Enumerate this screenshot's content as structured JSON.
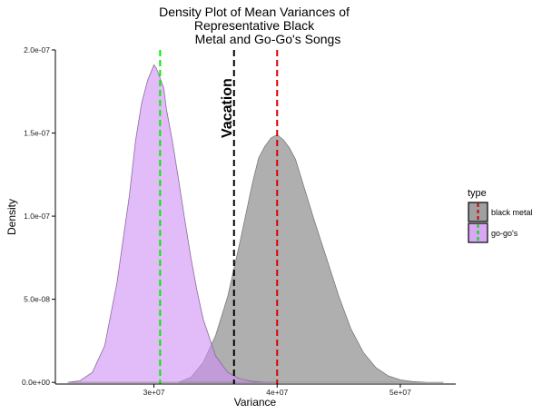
{
  "chart_data": {
    "type": "area",
    "title_lines": [
      "Density Plot of Mean Variances of",
      "Representative Black",
      "Metal and Go-Go's Songs"
    ],
    "xlabel": "Variance",
    "ylabel": "Density",
    "xlim": [
      22000000,
      54500000
    ],
    "ylim": [
      -1e-09,
      2e-07
    ],
    "x_ticks": [
      {
        "value": 30000000,
        "label": "3e+07"
      },
      {
        "value": 40000000,
        "label": "4e+07"
      },
      {
        "value": 50000000,
        "label": "5e+07"
      }
    ],
    "y_ticks": [
      {
        "value": 0,
        "label": "0.0e+00"
      },
      {
        "value": 5e-08,
        "label": "5.0e-08"
      },
      {
        "value": 1e-07,
        "label": "1.0e-07"
      },
      {
        "value": 1.5e-07,
        "label": "1.5e-07"
      },
      {
        "value": 2e-07,
        "label": "2.0e-07"
      }
    ],
    "legend": {
      "title": "type",
      "position": "right",
      "entries": [
        {
          "label": "black metal",
          "fill": "#a0a0a0",
          "line_color": "#cc0000"
        },
        {
          "label": "go-go's",
          "fill": "#d9a8f5",
          "line_color": "#00dd00"
        }
      ]
    },
    "series": [
      {
        "name": "black metal",
        "fill": "#999999",
        "fill_opacity": 0.78,
        "outline": "#7a7a7a",
        "x": [
          32000000,
          33000000,
          34000000,
          35000000,
          36000000,
          37000000,
          38000000,
          38500000,
          39000000,
          39500000,
          40000000,
          40500000,
          41000000,
          41500000,
          42000000,
          43000000,
          44000000,
          45000000,
          46000000,
          47000000,
          48000000,
          49000000,
          50000000,
          51000000,
          52000000,
          53500000
        ],
        "y": [
          0,
          3e-09,
          1.2e-08,
          2.8e-08,
          5.2e-08,
          8.5e-08,
          1.2e-07,
          1.35e-07,
          1.42e-07,
          1.47e-07,
          1.49e-07,
          1.46e-07,
          1.41e-07,
          1.34e-07,
          1.22e-07,
          9.78e-08,
          7.5e-08,
          5.2e-08,
          3.2e-08,
          1.8e-08,
          9e-09,
          4e-09,
          1.5e-09,
          5e-10,
          1e-10,
          0
        ]
      },
      {
        "name": "go-go's",
        "fill": "#cf8ef5",
        "fill_opacity": 0.6,
        "outline": "#8a6a9a",
        "x": [
          23000000,
          24000000,
          25000000,
          26000000,
          27000000,
          28000000,
          28500000,
          29000000,
          29500000,
          30000000,
          30200000,
          30500000,
          30800000,
          31000000,
          31500000,
          32000000,
          32500000,
          33000000,
          33500000,
          34000000,
          35000000,
          36000000,
          37000000,
          38000000,
          39000000,
          40000000
        ],
        "y": [
          0,
          1e-09,
          6e-09,
          2.2e-08,
          6e-08,
          1.12e-07,
          1.45e-07,
          1.68e-07,
          1.82e-07,
          1.91e-07,
          1.89e-07,
          1.83e-07,
          1.77e-07,
          1.65e-07,
          1.45e-07,
          1.22e-07,
          9.8e-08,
          7.5e-08,
          5.5e-08,
          3.8e-08,
          1.6e-08,
          6e-09,
          2e-09,
          6e-10,
          1e-10,
          0
        ]
      }
    ],
    "vlines": [
      {
        "name": "go-go's mean",
        "x": 30500000,
        "color": "#00ee00"
      },
      {
        "name": "vacation",
        "x": 36500000,
        "color": "#000000"
      },
      {
        "name": "black metal mean",
        "x": 40000000,
        "color": "#dd0000"
      }
    ],
    "annotation": {
      "text": "Vacation",
      "x": 36500000,
      "y": 1.65e-07
    }
  }
}
